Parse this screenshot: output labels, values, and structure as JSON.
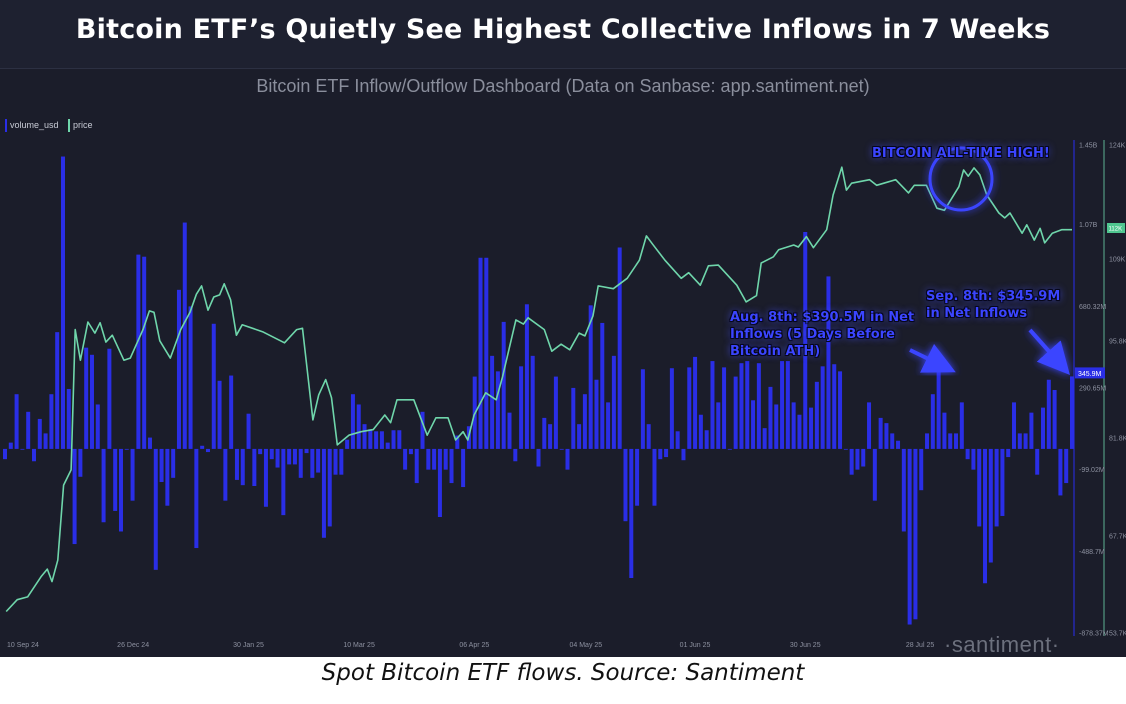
{
  "title": "Bitcoin ETF’s Quietly See Highest Collective Inflows in 7 Weeks",
  "subtitle": "Bitcoin ETF Inflow/Outflow Dashboard (Data on Sanbase: app.santiment.net)",
  "caption": "Spot Bitcoin ETF flows. Source: Santiment",
  "watermark": "·santiment·",
  "colors": {
    "bars": "#2a2ee6",
    "price": "#6fd6ab",
    "background": "#1b1d2a",
    "annotation": "#3b45ff"
  },
  "annotations": {
    "ath": "BITCOIN ALL-TIME HIGH!",
    "aug": "Aug. 8th: $390.5M in Net Inflows (5 Days Before Bitcoin ATH)",
    "sep": "Sep. 8th: $345.9M in Net Inflows"
  },
  "chart_data": {
    "type": "bar+line",
    "legend": [
      {
        "name": "volume_usd",
        "color": "#2a2ee6"
      },
      {
        "name": "price",
        "color": "#6fd6ab"
      }
    ],
    "legend_position": "top-left",
    "grid": false,
    "x_ticks": [
      {
        "label": "10 Sep 24",
        "index": 0
      },
      {
        "label": "26 Dec 24",
        "index": 19
      },
      {
        "label": "30 Jan 25",
        "index": 39
      },
      {
        "label": "10 Mar 25",
        "index": 58
      },
      {
        "label": "06 Apr 25",
        "index": 78
      },
      {
        "label": "04 May 25",
        "index": 97
      },
      {
        "label": "01 Jun 25",
        "index": 116
      },
      {
        "label": "30 Jun 25",
        "index": 135
      },
      {
        "label": "28 Jul 25",
        "index": 155
      }
    ],
    "volume_axis": {
      "unit": "USD millions",
      "ylim": [
        -878.37,
        1450
      ],
      "ticks": [
        {
          "value": 1450,
          "label": "1.45B"
        },
        {
          "value": 1070,
          "label": "1.07B"
        },
        {
          "value": 680.32,
          "label": "680.32M"
        },
        {
          "value": 290.65,
          "label": "290.65M"
        },
        {
          "value": -99.02,
          "label": "-99.02M"
        },
        {
          "value": -488.7,
          "label": "-488.7M"
        },
        {
          "value": -878.37,
          "label": "-878.37M"
        }
      ],
      "current_label": "345.9M",
      "current_value": 345.9
    },
    "price_axis": {
      "unit": "USD thousands",
      "ylim": [
        53.7,
        124
      ],
      "ticks": [
        {
          "value": 124,
          "label": "124K"
        },
        {
          "value": 109,
          "label": "109K"
        },
        {
          "value": 95.8,
          "label": "95.8K"
        },
        {
          "value": 81.8,
          "label": "81.8K"
        },
        {
          "value": 67.7,
          "label": "67.7K"
        },
        {
          "value": 53.7,
          "label": "53.7K"
        }
      ],
      "current_label": "112K",
      "current_value": 111.8
    },
    "volume_usd_millions": [
      -49,
      30,
      261,
      0,
      177,
      -59,
      143,
      74,
      261,
      557,
      1395,
      286,
      -454,
      -133,
      483,
      449,
      212,
      -350,
      478,
      -296,
      -394,
      0,
      -247,
      927,
      917,
      54,
      -577,
      -158,
      -271,
      -138,
      759,
      1080,
      680,
      -473,
      15,
      -15,
      597,
      325,
      -247,
      350,
      -148,
      -173,
      168,
      -177,
      -25,
      -276,
      -49,
      -89,
      -316,
      -74,
      -74,
      -138,
      -20,
      -138,
      -113,
      -424,
      -370,
      -123,
      -123,
      44,
      261,
      212,
      118,
      94,
      84,
      84,
      30,
      89,
      89,
      -99,
      -25,
      -163,
      177,
      -99,
      -99,
      -325,
      -99,
      -163,
      64,
      -182,
      108,
      345,
      912,
      912,
      444,
      370,
      606,
      173,
      -59,
      394,
      690,
      444,
      -84,
      148,
      118,
      345,
      0,
      -99,
      291,
      118,
      261,
      685,
      330,
      601,
      222,
      444,
      961,
      -345,
      -616,
      -271,
      380,
      118,
      -271,
      -49,
      -39,
      385,
      84,
      -54,
      389,
      439,
      163,
      89,
      419,
      222,
      389,
      0,
      345,
      409,
      419,
      232,
      409,
      99,
      296,
      212,
      419,
      419,
      222,
      163,
      1035,
      197,
      320,
      394,
      823,
      404,
      370,
      0,
      -123,
      -99,
      -84,
      222,
      -247,
      148,
      123,
      74,
      39,
      -394,
      -838,
      -813,
      -197,
      74,
      261,
      390.5,
      173,
      74,
      74,
      222,
      -49,
      -99,
      -370,
      -641,
      -542,
      -370,
      -320,
      -39,
      222,
      74,
      74,
      173,
      -123,
      197,
      330,
      281,
      -222,
      -163,
      345.9
    ],
    "price_thousands": [
      [
        0.2,
        56.8
      ],
      [
        2.1,
        58.5
      ],
      [
        3.9,
        58.9
      ],
      [
        6.2,
        61.8
      ],
      [
        7.3,
        62.9
      ],
      [
        8.1,
        61.1
      ],
      [
        9.1,
        64.2
      ],
      [
        10.1,
        75.0
      ],
      [
        11.4,
        77.2
      ],
      [
        12.1,
        97.4
      ],
      [
        13,
        93.0
      ],
      [
        14.3,
        98.5
      ],
      [
        15.5,
        96.9
      ],
      [
        16.4,
        98.4
      ],
      [
        17.4,
        95.6
      ],
      [
        18.5,
        96.6
      ],
      [
        20.5,
        93.0
      ],
      [
        21.6,
        93.3
      ],
      [
        23.8,
        97.4
      ],
      [
        24.9,
        100.1
      ],
      [
        25.7,
        99.9
      ],
      [
        26.7,
        95.8
      ],
      [
        28.5,
        93.3
      ],
      [
        30.3,
        97.4
      ],
      [
        31.9,
        99.9
      ],
      [
        33,
        102.5
      ],
      [
        33.9,
        103.7
      ],
      [
        35,
        100.2
      ],
      [
        36,
        102.1
      ],
      [
        37,
        102.4
      ],
      [
        37.8,
        104.0
      ],
      [
        38.9,
        101.7
      ],
      [
        39.9,
        96.6
      ],
      [
        40.9,
        98.1
      ],
      [
        44.4,
        97.1
      ],
      [
        48.2,
        95.5
      ],
      [
        50.3,
        97.4
      ],
      [
        51.3,
        97.6
      ],
      [
        53.1,
        84.4
      ],
      [
        54.1,
        88.0
      ],
      [
        55.3,
        90.2
      ],
      [
        56.3,
        87.6
      ],
      [
        57.3,
        80.8
      ],
      [
        59.3,
        82.2
      ],
      [
        61.4,
        82.7
      ],
      [
        63.5,
        83.0
      ],
      [
        65.5,
        85.1
      ],
      [
        66.5,
        84.0
      ],
      [
        67.6,
        87.3
      ],
      [
        70.5,
        87.3
      ],
      [
        72.8,
        82.2
      ],
      [
        74.3,
        84.7
      ],
      [
        76.4,
        84.7
      ],
      [
        77.7,
        81.5
      ],
      [
        79,
        82.7
      ],
      [
        79.8,
        81.5
      ],
      [
        80.9,
        85.1
      ],
      [
        82.9,
        88.3
      ],
      [
        84.7,
        87.3
      ],
      [
        85.8,
        90.6
      ],
      [
        88.1,
        98.8
      ],
      [
        89.4,
        98.2
      ],
      [
        90.2,
        99.1
      ],
      [
        93,
        97.4
      ],
      [
        94.3,
        94.3
      ],
      [
        95.9,
        95.3
      ],
      [
        97.4,
        94.5
      ],
      [
        99,
        96.9
      ],
      [
        100,
        96.5
      ],
      [
        101.4,
        99.4
      ],
      [
        102.3,
        103.7
      ],
      [
        104.9,
        103.3
      ],
      [
        107.3,
        104.8
      ],
      [
        109.4,
        107.4
      ],
      [
        110.6,
        110.9
      ],
      [
        111.7,
        109.7
      ],
      [
        113.8,
        107.4
      ],
      [
        116.6,
        104.8
      ],
      [
        117.9,
        105.6
      ],
      [
        119.9,
        103.8
      ],
      [
        121.3,
        106.6
      ],
      [
        123,
        106.7
      ],
      [
        126.2,
        103.8
      ],
      [
        127.8,
        101.4
      ],
      [
        129.6,
        102.3
      ],
      [
        130.4,
        107.0
      ],
      [
        132.5,
        107.9
      ],
      [
        133.4,
        108.9
      ],
      [
        136,
        109.6
      ],
      [
        136.8,
        109.3
      ],
      [
        138.2,
        110.8
      ],
      [
        139.4,
        109.2
      ],
      [
        141.7,
        111.8
      ],
      [
        142.8,
        116.8
      ],
      [
        144.3,
        120.8
      ],
      [
        145.1,
        117.5
      ],
      [
        146,
        118.5
      ],
      [
        149.1,
        119.0
      ],
      [
        150.3,
        118.2
      ],
      [
        153.6,
        119.0
      ],
      [
        155.8,
        117.1
      ],
      [
        156.8,
        118.2
      ],
      [
        158.9,
        118.2
      ],
      [
        160.7,
        114.9
      ],
      [
        162,
        114.6
      ],
      [
        164.5,
        118.0
      ],
      [
        165.3,
        120.4
      ],
      [
        166.1,
        119.5
      ],
      [
        167.1,
        120.7
      ],
      [
        168.1,
        119.7
      ],
      [
        169.3,
        116.8
      ],
      [
        171.4,
        114.2
      ],
      [
        172.4,
        113.5
      ],
      [
        173.3,
        114.2
      ],
      [
        175.4,
        111.3
      ],
      [
        176.2,
        112.5
      ],
      [
        177.5,
        110.3
      ],
      [
        178.5,
        112.0
      ],
      [
        179.3,
        109.9
      ],
      [
        180.6,
        111.3
      ],
      [
        182.2,
        111.8
      ],
      [
        184,
        111.8
      ]
    ]
  }
}
